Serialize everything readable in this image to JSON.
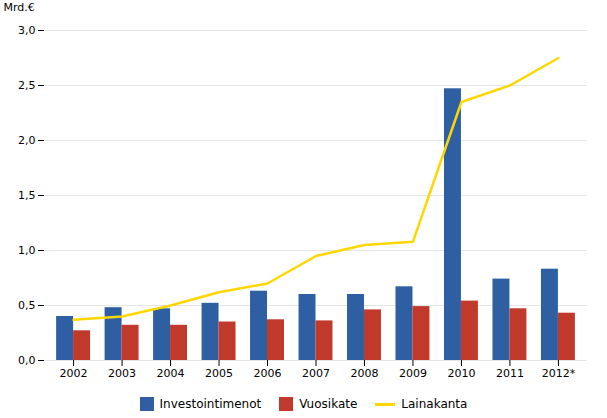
{
  "chart_data": {
    "type": "bar",
    "ylabel": "Mrd.€",
    "categories": [
      "2002",
      "2003",
      "2004",
      "2005",
      "2006",
      "2007",
      "2008",
      "2009",
      "2010",
      "2011",
      "2012*"
    ],
    "series": [
      {
        "name": "Investointimenot",
        "type": "bar",
        "color": "#2E5FA3",
        "values": [
          0.4,
          0.48,
          0.47,
          0.52,
          0.63,
          0.6,
          0.6,
          0.67,
          2.47,
          0.74,
          0.83
        ]
      },
      {
        "name": "Vuosikate",
        "type": "bar",
        "color": "#C0392B",
        "values": [
          0.27,
          0.32,
          0.32,
          0.35,
          0.37,
          0.36,
          0.46,
          0.49,
          0.54,
          0.47,
          0.43
        ]
      },
      {
        "name": "Lainakanta",
        "type": "line",
        "color": "#FFD700",
        "values": [
          0.37,
          0.4,
          0.5,
          0.62,
          0.7,
          0.95,
          1.05,
          1.08,
          2.35,
          2.5,
          2.75
        ]
      }
    ],
    "ylim": [
      0.0,
      3.0
    ],
    "yticks": [
      {
        "value": 0.0,
        "label": "0,0"
      },
      {
        "value": 0.5,
        "label": "0,5"
      },
      {
        "value": 1.0,
        "label": "1,0"
      },
      {
        "value": 1.5,
        "label": "1,5"
      },
      {
        "value": 2.0,
        "label": "2,0"
      },
      {
        "value": 2.5,
        "label": "2,5"
      },
      {
        "value": 3.0,
        "label": "3,0"
      }
    ],
    "grid": true,
    "legend": "bottom"
  }
}
